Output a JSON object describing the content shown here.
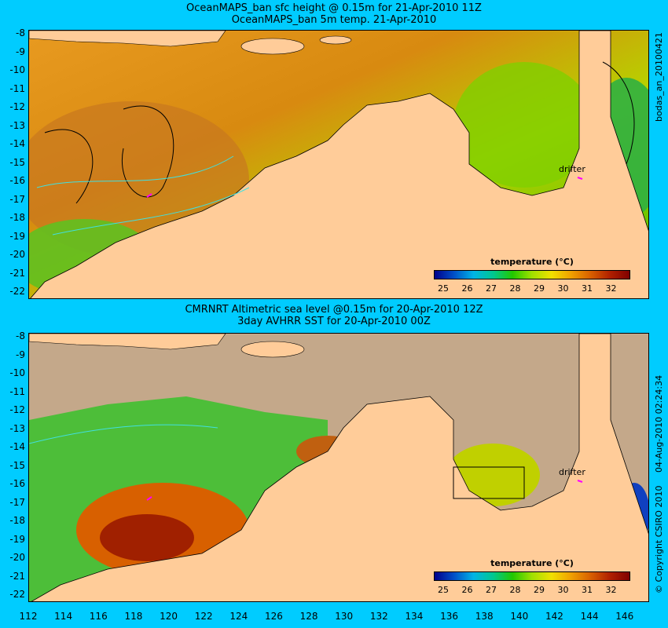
{
  "top": {
    "title1": "OceanMAPS_ban sfc height @ 0.15m for 21-Apr-2010 11Z",
    "title2": "OceanMAPS_ban 5m temp. 21-Apr-2010",
    "side_label": "bodas_an_20100421",
    "drifter": "drifter"
  },
  "bottom": {
    "title1": "CMRNRT Altimetric sea level  @0.15m  for 20-Apr-2010 12Z",
    "title2": "3day AVHRR SST for 20-Apr-2010 00Z",
    "side_label1": "04-Aug-2010 02:24:34",
    "side_label2": "© Copyright CSIRO 2010",
    "drifter": "drifter"
  },
  "legend": {
    "title": "temperature  (°C)",
    "ticks": [
      "25",
      "26",
      "27",
      "28",
      "29",
      "30",
      "31",
      "32"
    ],
    "colors": [
      "#00008b",
      "#0050c8",
      "#00b4e6",
      "#00c890",
      "#22c800",
      "#a0e000",
      "#f0e000",
      "#f0a000",
      "#d86000",
      "#b02000",
      "#800000"
    ]
  },
  "axes": {
    "y_ticks": [
      "-8",
      "-9",
      "-10",
      "-11",
      "-12",
      "-13",
      "-14",
      "-15",
      "-16",
      "-17",
      "-18",
      "-19",
      "-20",
      "-21",
      "-22"
    ],
    "x_ticks": [
      "112",
      "114",
      "116",
      "118",
      "120",
      "122",
      "124",
      "126",
      "128",
      "130",
      "132",
      "134",
      "136",
      "138",
      "140",
      "142",
      "144",
      "146"
    ]
  },
  "colors": {
    "background": "#00ccff",
    "land": "#ffcc99",
    "no_data": "#c4a88a",
    "drifter_marker": "#ff00ff"
  }
}
